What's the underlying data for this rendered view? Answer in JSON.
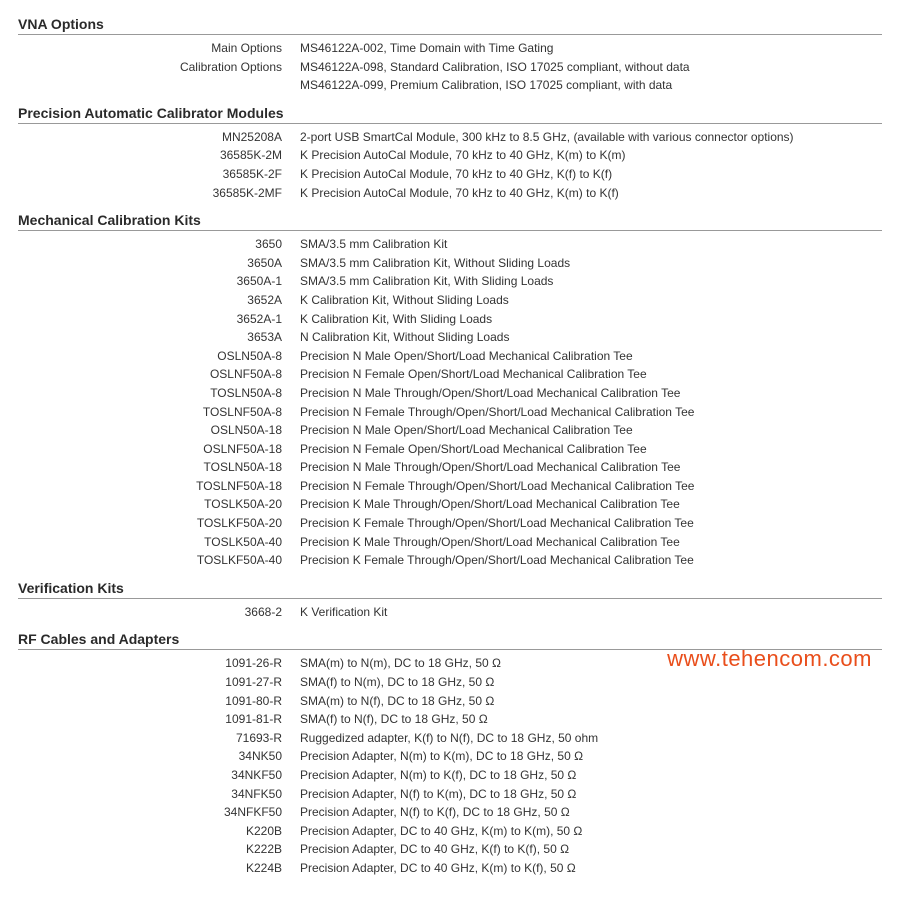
{
  "watermark": "www.tehencom.com",
  "sections": [
    {
      "title": "VNA Options",
      "rows": [
        {
          "label": "Main Options",
          "value": "MS46122A-002, Time Domain with Time Gating"
        },
        {
          "label": "Calibration Options",
          "value": "MS46122A-098, Standard Calibration, ISO 17025 compliant, without data"
        },
        {
          "label": "",
          "value": "MS46122A-099, Premium Calibration, ISO 17025 compliant, with data"
        }
      ]
    },
    {
      "title": "Precision Automatic Calibrator Modules",
      "rows": [
        {
          "label": "MN25208A",
          "value": "2-port USB SmartCal Module, 300 kHz to 8.5 GHz, (available with various connector options)"
        },
        {
          "label": "36585K-2M",
          "value": "K Precision AutoCal Module, 70 kHz to 40 GHz, K(m) to K(m)"
        },
        {
          "label": "36585K-2F",
          "value": "K Precision AutoCal Module, 70 kHz to 40 GHz, K(f) to K(f)"
        },
        {
          "label": "36585K-2MF",
          "value": "K Precision AutoCal Module, 70 kHz to 40 GHz, K(m) to K(f)"
        }
      ]
    },
    {
      "title": "Mechanical Calibration Kits",
      "rows": [
        {
          "label": "3650",
          "value": "SMA/3.5 mm Calibration Kit"
        },
        {
          "label": "3650A",
          "value": "SMA/3.5 mm Calibration Kit, Without Sliding Loads"
        },
        {
          "label": "3650A-1",
          "value": "SMA/3.5 mm Calibration Kit, With Sliding Loads"
        },
        {
          "label": "3652A",
          "value": "K Calibration Kit, Without Sliding Loads"
        },
        {
          "label": "3652A-1",
          "value": "K Calibration Kit, With Sliding Loads"
        },
        {
          "label": "3653A",
          "value": "N Calibration Kit, Without Sliding Loads"
        },
        {
          "label": "OSLN50A-8",
          "value": "Precision N Male Open/Short/Load Mechanical Calibration Tee"
        },
        {
          "label": "OSLNF50A-8",
          "value": "Precision N Female Open/Short/Load Mechanical Calibration Tee"
        },
        {
          "label": "TOSLN50A-8",
          "value": "Precision N Male Through/Open/Short/Load Mechanical Calibration Tee"
        },
        {
          "label": "TOSLNF50A-8",
          "value": "Precision N Female Through/Open/Short/Load Mechanical Calibration Tee"
        },
        {
          "label": "OSLN50A-18",
          "value": "Precision N Male Open/Short/Load Mechanical Calibration Tee"
        },
        {
          "label": "OSLNF50A-18",
          "value": "Precision N Female Open/Short/Load Mechanical Calibration Tee"
        },
        {
          "label": "TOSLN50A-18",
          "value": "Precision N Male Through/Open/Short/Load Mechanical Calibration Tee"
        },
        {
          "label": "TOSLNF50A-18",
          "value": "Precision N Female Through/Open/Short/Load Mechanical Calibration Tee"
        },
        {
          "label": "TOSLK50A-20",
          "value": "Precision K Male Through/Open/Short/Load Mechanical Calibration Tee"
        },
        {
          "label": "TOSLKF50A-20",
          "value": "Precision K Female Through/Open/Short/Load Mechanical Calibration Tee"
        },
        {
          "label": "TOSLK50A-40",
          "value": "Precision K Male Through/Open/Short/Load Mechanical Calibration Tee"
        },
        {
          "label": "TOSLKF50A-40",
          "value": "Precision K Female Through/Open/Short/Load Mechanical Calibration Tee"
        }
      ]
    },
    {
      "title": "Verification Kits",
      "rows": [
        {
          "label": "3668-2",
          "value": "K Verification Kit"
        }
      ]
    },
    {
      "title": "RF Cables and Adapters",
      "rows": [
        {
          "label": "1091-26-R",
          "value": "SMA(m) to N(m), DC to 18 GHz, 50 Ω"
        },
        {
          "label": "1091-27-R",
          "value": "SMA(f) to N(m), DC to 18 GHz, 50 Ω"
        },
        {
          "label": "1091-80-R",
          "value": "SMA(m) to N(f), DC to 18 GHz, 50 Ω"
        },
        {
          "label": "1091-81-R",
          "value": "SMA(f) to N(f), DC to 18 GHz, 50 Ω"
        },
        {
          "label": "71693-R",
          "value": "Ruggedized adapter, K(f) to N(f), DC to 18 GHz, 50 ohm"
        },
        {
          "label": "34NK50",
          "value": "Precision Adapter, N(m) to K(m), DC to 18 GHz, 50 Ω"
        },
        {
          "label": "34NKF50",
          "value": "Precision Adapter, N(m) to K(f), DC to 18 GHz, 50 Ω"
        },
        {
          "label": "34NFK50",
          "value": "Precision Adapter, N(f) to K(m), DC to 18 GHz, 50 Ω"
        },
        {
          "label": "34NFKF50",
          "value": "Precision Adapter, N(f) to K(f), DC to 18 GHz, 50 Ω"
        },
        {
          "label": "K220B",
          "value": "Precision Adapter, DC to 40 GHz, K(m) to K(m), 50 Ω"
        },
        {
          "label": "K222B",
          "value": "Precision Adapter, DC to 40 GHz, K(f) to K(f), 50 Ω"
        },
        {
          "label": "K224B",
          "value": "Precision Adapter, DC to 40 GHz, K(m) to K(f), 50 Ω"
        }
      ]
    }
  ]
}
